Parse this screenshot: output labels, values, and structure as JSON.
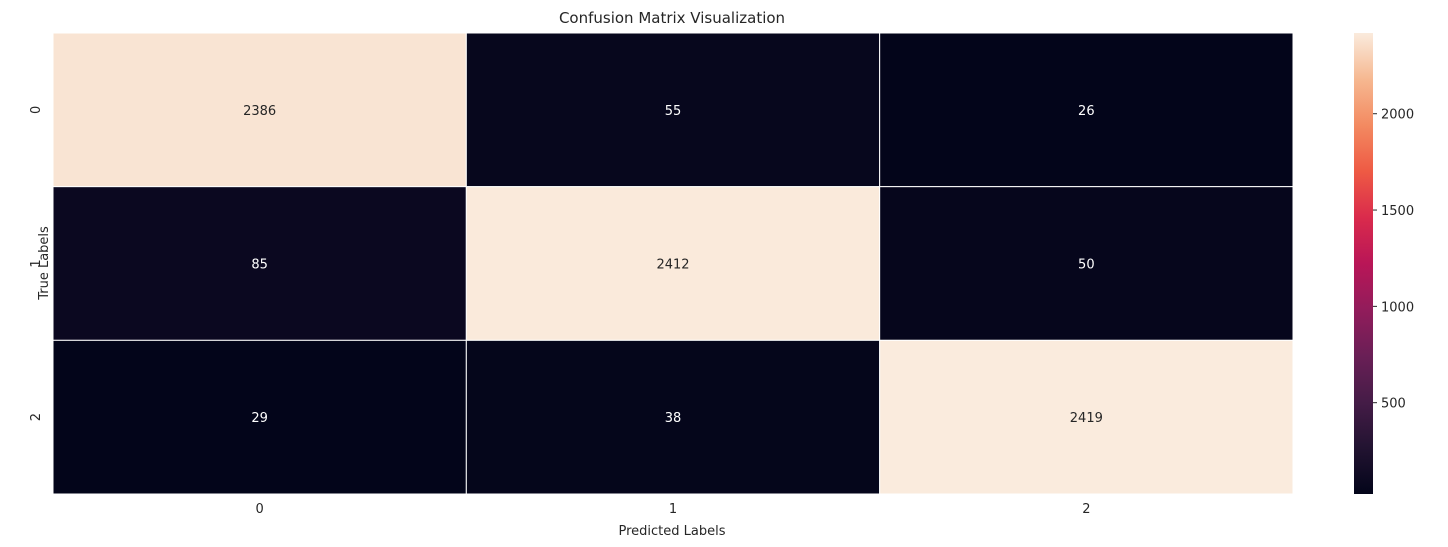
{
  "chart_data": {
    "type": "heatmap",
    "title": "Confusion Matrix Visualization",
    "xlabel": "Predicted Labels",
    "ylabel": "True Labels",
    "x_categories": [
      "0",
      "1",
      "2"
    ],
    "y_categories": [
      "0",
      "1",
      "2"
    ],
    "values": [
      [
        2386,
        55,
        26
      ],
      [
        85,
        2412,
        50
      ],
      [
        29,
        38,
        2419
      ]
    ],
    "colormap": "rocket",
    "colorbar": {
      "range": [
        26,
        2419
      ],
      "ticks": [
        500,
        1000,
        1500,
        2000
      ]
    },
    "grid": false,
    "legend": "colorbar-right"
  },
  "colors": {
    "background": "#ffffff",
    "cell_border": "#ffffff",
    "annot_on_dark": "#ffffff",
    "annot_on_light": "#262626"
  }
}
